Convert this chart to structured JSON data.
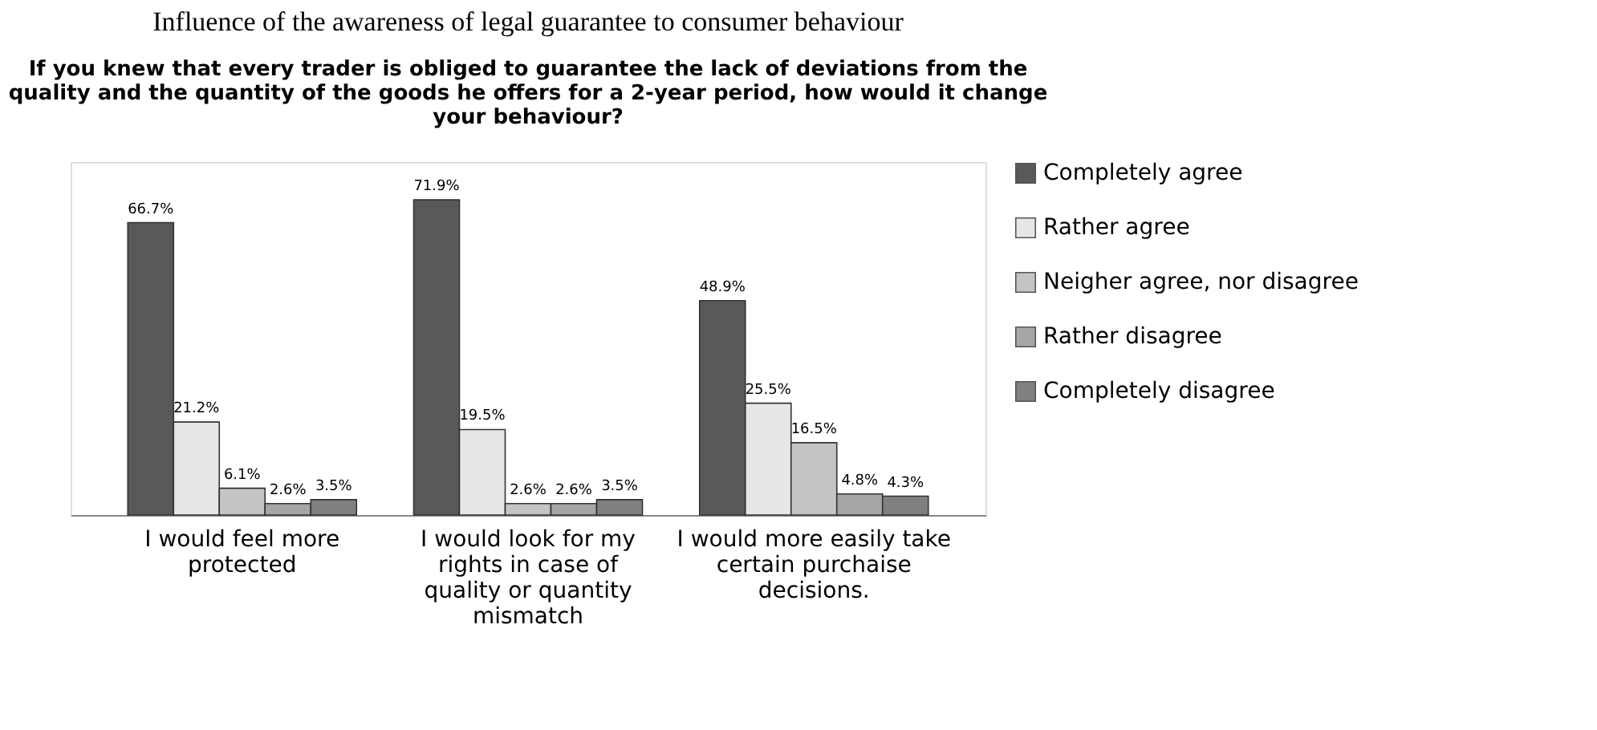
{
  "chart_data": {
    "type": "bar",
    "title": "Influence of the awareness of legal guarantee to consumer behaviour",
    "subtitle": "If you knew that every trader is obliged to guarantee the lack of deviations from the quality and the quantity of the goods he offers for a 2-year period, how would it change your behaviour?",
    "categories": [
      "I would feel more protected",
      "I would look for my rights in case of quality or quantity mismatch",
      "I would more easily take certain purchaise decisions."
    ],
    "series": [
      {
        "name": "Completely agree",
        "color": "#595959",
        "values": [
          66.7,
          71.9,
          48.9
        ],
        "value_labels": [
          "66.7%",
          "71.9%",
          "48.9%"
        ]
      },
      {
        "name": "Rather agree",
        "color": "#e6e6e6",
        "values": [
          21.2,
          19.5,
          25.5
        ],
        "value_labels": [
          "21.2%",
          "19.5%",
          "25.5%"
        ]
      },
      {
        "name": "Neigher agree, nor disagree",
        "color": "#c4c4c4",
        "values": [
          6.1,
          2.6,
          16.5
        ],
        "value_labels": [
          "6.1%",
          "2.6%",
          "16.5%"
        ]
      },
      {
        "name": "Rather disagree",
        "color": "#a6a6a6",
        "values": [
          2.6,
          2.6,
          4.8
        ],
        "value_labels": [
          "2.6%",
          "2.6%",
          "4.8%"
        ]
      },
      {
        "name": "Completely disagree",
        "color": "#808080",
        "values": [
          3.5,
          3.5,
          4.3
        ],
        "value_labels": [
          "3.5%",
          "3.5%",
          "4.3%"
        ]
      }
    ],
    "legend": "right",
    "grid": false
  }
}
